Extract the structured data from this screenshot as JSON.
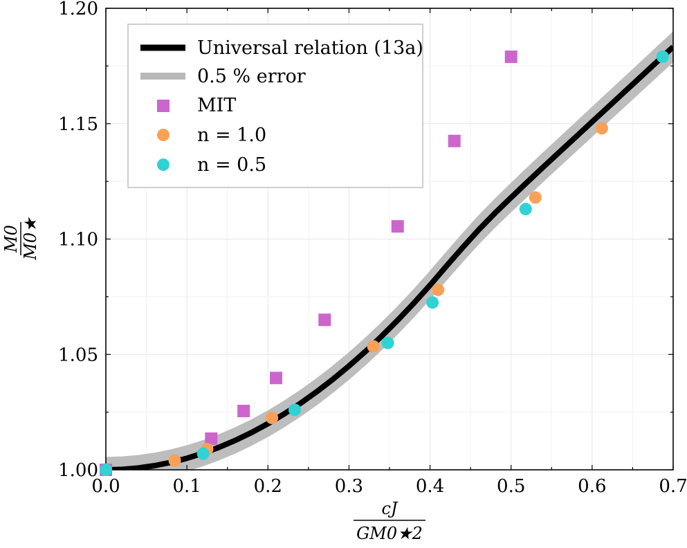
{
  "chart_data": {
    "type": "scatter",
    "xlabel": {
      "numerator": "cJ",
      "denominator": "GM0★2"
    },
    "ylabel": {
      "numerator": "M0",
      "denominator": "M0★"
    },
    "xlim": [
      0.0,
      0.7
    ],
    "ylim": [
      1.0,
      1.2
    ],
    "xticks": [
      "0.0",
      "0.1",
      "0.2",
      "0.3",
      "0.4",
      "0.5",
      "0.6",
      "0.7"
    ],
    "yticks": [
      "1.00",
      "1.05",
      "1.10",
      "1.15",
      "1.20"
    ],
    "grid": true,
    "legend_position": "top-left",
    "legend": [
      {
        "label": "Universal relation (13a)",
        "kind": "line",
        "color": "#000000"
      },
      {
        "label": "0.5 % error",
        "kind": "band",
        "color": "#b8b8b8"
      },
      {
        "label": "MIT",
        "kind": "square",
        "color": "#cc66cc"
      },
      {
        "label": "n = 1.0",
        "kind": "circle",
        "color": "#f9a058"
      },
      {
        "label": "n = 0.5",
        "kind": "circle",
        "color": "#2fd3d3"
      }
    ],
    "universal_curve": {
      "x": [
        0.0,
        0.02,
        0.04,
        0.06,
        0.08,
        0.1,
        0.12,
        0.14,
        0.16,
        0.18,
        0.2,
        0.22,
        0.24,
        0.26,
        0.28,
        0.3,
        0.32,
        0.34,
        0.36,
        0.38,
        0.4,
        0.42,
        0.44,
        0.46,
        0.48,
        0.5,
        0.52,
        0.54,
        0.56,
        0.58,
        0.6,
        0.62,
        0.64,
        0.66,
        0.68,
        0.7
      ],
      "y": [
        1.0,
        1.0002,
        1.0008,
        1.0018,
        1.0032,
        1.005,
        1.0072,
        1.0098,
        1.0128,
        1.0162,
        1.02,
        1.0242,
        1.0288,
        1.0338,
        1.0392,
        1.045,
        1.0512,
        1.0578,
        1.0648,
        1.0722,
        1.08,
        1.0882,
        1.0962,
        1.104,
        1.1112,
        1.118,
        1.1247,
        1.1313,
        1.1378,
        1.1443,
        1.1508,
        1.1573,
        1.1638,
        1.1703,
        1.1768,
        1.1833
      ]
    },
    "error_band_percent": 0.5,
    "series": [
      {
        "name": "MIT",
        "marker": "square",
        "color": "#cc66cc",
        "x": [
          0.0,
          0.13,
          0.17,
          0.21,
          0.27,
          0.36,
          0.43,
          0.5
        ],
        "y": [
          1.0,
          1.0135,
          1.0255,
          1.0398,
          1.065,
          1.1055,
          1.1425,
          1.179
        ]
      },
      {
        "name": "n = 1.0",
        "marker": "circle",
        "color": "#f9a058",
        "x": [
          0.0,
          0.085,
          0.125,
          0.205,
          0.33,
          0.41,
          0.53,
          0.612
        ],
        "y": [
          1.0,
          1.004,
          1.009,
          1.0225,
          1.0535,
          1.078,
          1.118,
          1.148
        ]
      },
      {
        "name": "n = 0.5",
        "marker": "circle",
        "color": "#2fd3d3",
        "x": [
          0.0,
          0.12,
          0.233,
          0.348,
          0.403,
          0.518,
          0.687
        ],
        "y": [
          1.0,
          1.007,
          1.026,
          1.055,
          1.0725,
          1.113,
          1.179
        ]
      }
    ]
  }
}
